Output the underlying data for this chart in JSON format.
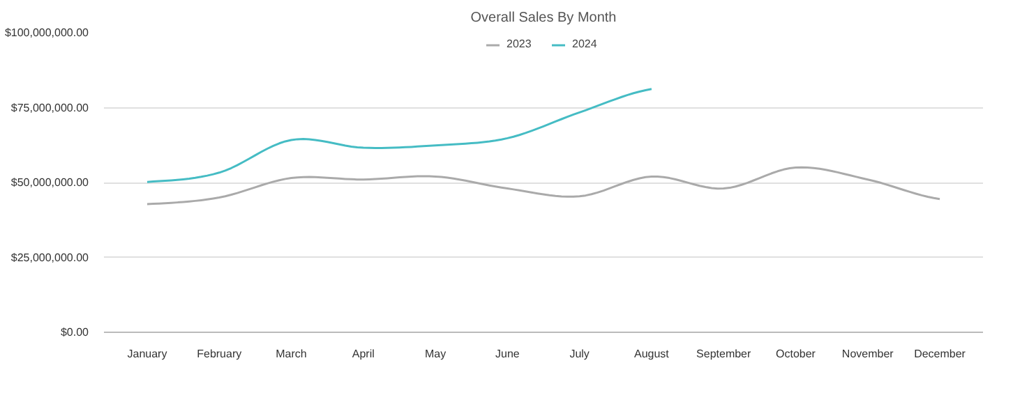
{
  "chart_data": {
    "type": "line",
    "title": "Overall Sales By Month",
    "categories": [
      "January",
      "February",
      "March",
      "April",
      "May",
      "June",
      "July",
      "August",
      "September",
      "October",
      "November",
      "December"
    ],
    "series": [
      {
        "name": "2023",
        "color": "#aaaaaa",
        "values": [
          42800000,
          45000000,
          51500000,
          51000000,
          52000000,
          48000000,
          45400000,
          52000000,
          48000000,
          55000000,
          51000000,
          44500000
        ]
      },
      {
        "name": "2024",
        "color": "#45bcc4",
        "values": [
          50200000,
          53300000,
          64200000,
          61600000,
          62400000,
          64800000,
          73400000,
          81200000,
          null,
          null,
          null,
          null
        ]
      }
    ],
    "ylim": [
      0,
      100000000
    ],
    "yticks": [
      {
        "value": 0,
        "label": "$0.00"
      },
      {
        "value": 25000000,
        "label": "$25,000,000.00"
      },
      {
        "value": 50000000,
        "label": "$50,000,000.00"
      },
      {
        "value": 75000000,
        "label": "$75,000,000.00"
      },
      {
        "value": 100000000,
        "label": "$100,000,000.00"
      }
    ],
    "grid": "y",
    "legend": "top",
    "marker": "none",
    "line_style": "solid"
  }
}
